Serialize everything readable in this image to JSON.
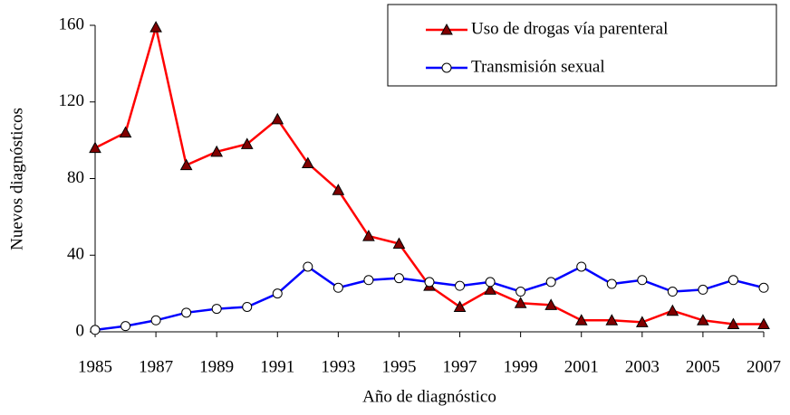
{
  "chart_data": {
    "type": "line",
    "xlabel": "Año de diagnóstico",
    "ylabel": "Nuevos diagnósticos",
    "x": [
      1985,
      1986,
      1987,
      1988,
      1989,
      1990,
      1991,
      1992,
      1993,
      1994,
      1995,
      1996,
      1997,
      1998,
      1999,
      2000,
      2001,
      2002,
      2003,
      2004,
      2005,
      2006,
      2007
    ],
    "series": [
      {
        "name": "Uso de drogas vía parenteral",
        "color": "#ff0000",
        "marker": "triangle",
        "values": [
          96,
          104,
          159,
          87,
          94,
          98,
          111,
          88,
          74,
          50,
          46,
          24,
          13,
          22,
          15,
          14,
          6,
          6,
          5,
          11,
          6,
          4,
          4
        ]
      },
      {
        "name": "Transmisión sexual",
        "color": "#0000ff",
        "marker": "circle",
        "values": [
          1,
          3,
          6,
          10,
          12,
          13,
          20,
          34,
          23,
          27,
          28,
          26,
          24,
          26,
          21,
          26,
          34,
          25,
          27,
          21,
          22,
          27,
          23
        ]
      }
    ],
    "xlim": [
      1985,
      2007
    ],
    "xticks": [
      1985,
      1987,
      1989,
      1991,
      1993,
      1995,
      1997,
      1999,
      2001,
      2003,
      2005,
      2007
    ],
    "ylim": [
      0,
      160
    ],
    "yticks": [
      0,
      40,
      80,
      120,
      160
    ],
    "grid": false,
    "legend": "upper right"
  }
}
